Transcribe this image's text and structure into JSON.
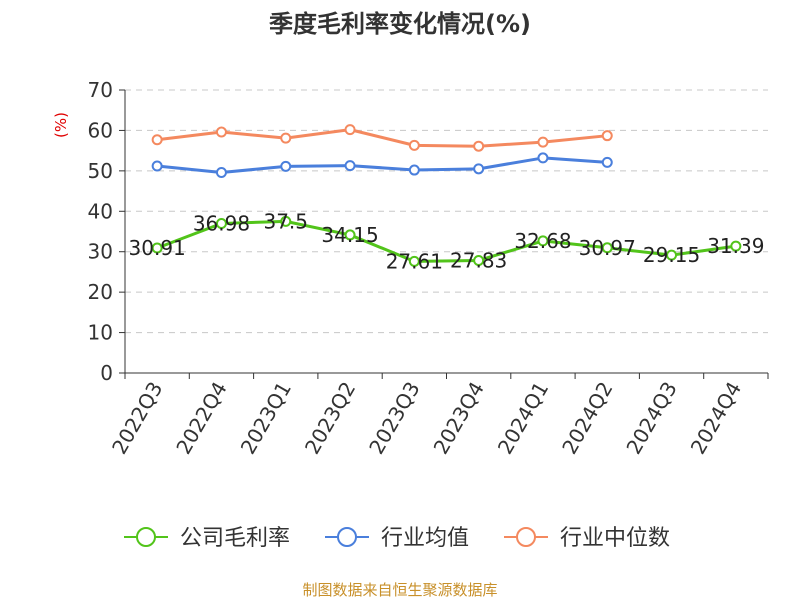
{
  "chart_data": {
    "type": "line",
    "title": "季度毛利率变化情况(%)",
    "ylabel": "(%)",
    "categories": [
      "2022Q3",
      "2022Q4",
      "2023Q1",
      "2023Q2",
      "2023Q3",
      "2023Q4",
      "2024Q1",
      "2024Q2",
      "2024Q3",
      "2024Q4"
    ],
    "ylim": [
      0,
      70
    ],
    "yticks": [
      "0",
      "10",
      "20",
      "30",
      "40",
      "50",
      "60",
      "70"
    ],
    "grid": true,
    "legend_position": "bottom",
    "series": [
      {
        "name": "公司毛利率",
        "color": "#52c41a",
        "values": [
          30.91,
          36.98,
          37.5,
          34.15,
          27.61,
          27.83,
          32.68,
          30.97,
          29.15,
          31.39
        ],
        "labels": [
          "30.91",
          "36.98",
          "37.5",
          "34.15",
          "27.61",
          "27.83",
          "32.68",
          "30.97",
          "29.15",
          "31.39"
        ]
      },
      {
        "name": "行业均值",
        "color": "#4a7fdc",
        "values": [
          51.2,
          49.6,
          51.1,
          51.3,
          50.2,
          50.5,
          53.2,
          52.1,
          null,
          null
        ]
      },
      {
        "name": "行业中位数",
        "color": "#f4895f",
        "values": [
          57.7,
          59.6,
          58.1,
          60.2,
          56.3,
          56.1,
          57.1,
          58.7,
          null,
          null
        ]
      }
    ],
    "source": "制图数据来自恒生聚源数据库"
  }
}
